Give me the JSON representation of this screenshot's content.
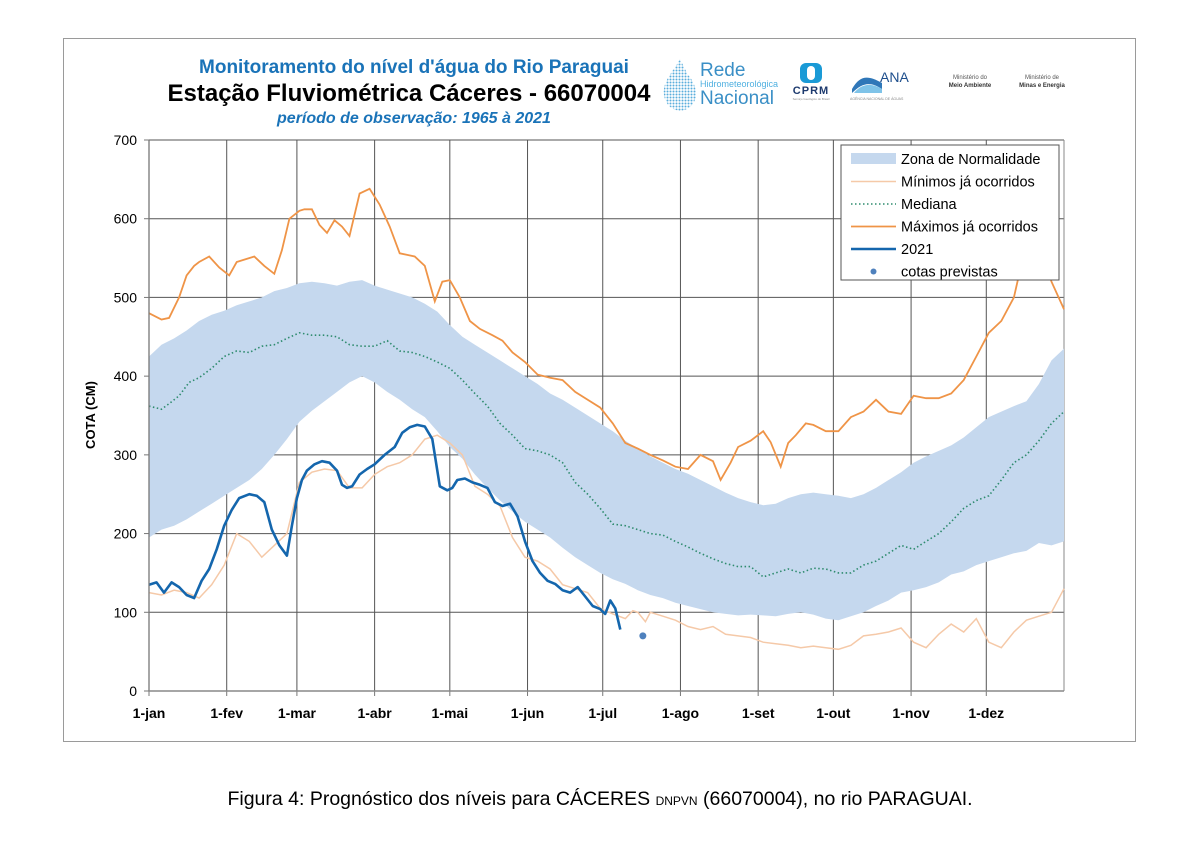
{
  "header": {
    "title_line1": "Monitoramento do nível d'água do Rio Paraguai",
    "title_line2": "Estação Fluviométrica Cáceres - 66070004",
    "title_line3": "período de observação: 1965 à 2021"
  },
  "logos": {
    "rede_line1": "Rede",
    "rede_line2": "Hidrometeorológica",
    "rede_line3": "Nacional",
    "cprm": "CPRM",
    "cprm_sub": "Serviço Geológico do Brasil",
    "ana": "ANA",
    "ana_sub": "AGÊNCIA NACIONAL DE ÁGUAS",
    "mma_line1": "Ministério do",
    "mma_line2": "Meio Ambiente",
    "mme_line1": "Ministério de",
    "mme_line2": "Minas e Energia"
  },
  "caption": {
    "prefix": "Figura 4: Prognóstico dos níveis para CÁCERES ",
    "small": "DNPVN",
    "suffix": " (66070004), no rio PARAGUAI."
  },
  "colors": {
    "band": "#c5d8ee",
    "min": "#f5c9a8",
    "median": "#2e8b6e",
    "max": "#ef9447",
    "y2021": "#1466ad",
    "forecast": "#4f81bd",
    "grid": "#555555"
  },
  "chart_data": {
    "type": "line",
    "title": "Monitoramento do nível d'água do Rio Paraguai",
    "xlabel": "",
    "ylabel": "COTA (CM)",
    "ylim": [
      0,
      700
    ],
    "yticks": [
      0,
      100,
      200,
      300,
      400,
      500,
      600,
      700
    ],
    "xlim_days": [
      0,
      365
    ],
    "xticks": [
      {
        "day": 0,
        "label": "1-jan"
      },
      {
        "day": 31,
        "label": "1-fev"
      },
      {
        "day": 59,
        "label": "1-mar"
      },
      {
        "day": 90,
        "label": "1-abr"
      },
      {
        "day": 120,
        "label": "1-mai"
      },
      {
        "day": 151,
        "label": "1-jun"
      },
      {
        "day": 181,
        "label": "1-jul"
      },
      {
        "day": 212,
        "label": "1-ago"
      },
      {
        "day": 243,
        "label": "1-set"
      },
      {
        "day": 273,
        "label": "1-out"
      },
      {
        "day": 304,
        "label": "1-nov"
      },
      {
        "day": 334,
        "label": "1-dez"
      }
    ],
    "grid": true,
    "legend_position": "top-right",
    "legend": [
      {
        "key": "band",
        "label": "Zona de Normalidade"
      },
      {
        "key": "min",
        "label": "Mínimos já ocorridos"
      },
      {
        "key": "median",
        "label": "Mediana"
      },
      {
        "key": "max",
        "label": "Máximos já ocorridos"
      },
      {
        "key": "y2021",
        "label": "2021"
      },
      {
        "key": "forecast",
        "label": "cotas previstas"
      }
    ],
    "band": {
      "name": "Zona de Normalidade",
      "x": [
        0,
        5,
        10,
        15,
        20,
        25,
        30,
        35,
        40,
        45,
        50,
        55,
        60,
        65,
        70,
        75,
        80,
        85,
        90,
        95,
        100,
        105,
        110,
        115,
        120,
        125,
        130,
        135,
        140,
        145,
        150,
        155,
        160,
        165,
        170,
        175,
        180,
        185,
        190,
        195,
        200,
        205,
        210,
        215,
        220,
        225,
        230,
        235,
        240,
        245,
        250,
        255,
        260,
        265,
        270,
        275,
        280,
        285,
        290,
        295,
        300,
        305,
        310,
        315,
        320,
        325,
        330,
        335,
        340,
        345,
        350,
        355,
        360,
        365
      ],
      "upper": [
        425,
        440,
        448,
        458,
        470,
        478,
        483,
        490,
        495,
        500,
        508,
        512,
        518,
        520,
        518,
        515,
        520,
        522,
        515,
        510,
        505,
        500,
        492,
        482,
        465,
        450,
        440,
        430,
        420,
        410,
        400,
        390,
        378,
        370,
        360,
        350,
        340,
        330,
        318,
        308,
        298,
        290,
        282,
        276,
        268,
        260,
        252,
        245,
        240,
        236,
        238,
        245,
        250,
        252,
        250,
        248,
        245,
        250,
        258,
        268,
        278,
        290,
        298,
        305,
        312,
        322,
        335,
        348,
        355,
        362,
        368,
        390,
        420,
        435
      ],
      "lower": [
        195,
        205,
        210,
        218,
        228,
        238,
        248,
        258,
        268,
        282,
        300,
        320,
        342,
        356,
        368,
        380,
        392,
        400,
        392,
        380,
        370,
        358,
        348,
        330,
        310,
        295,
        275,
        258,
        242,
        228,
        215,
        205,
        195,
        182,
        170,
        160,
        150,
        142,
        136,
        128,
        122,
        118,
        112,
        108,
        104,
        100,
        98,
        96,
        97,
        96,
        95,
        98,
        100,
        97,
        92,
        90,
        95,
        100,
        108,
        115,
        125,
        128,
        132,
        138,
        148,
        152,
        160,
        165,
        170,
        175,
        178,
        188,
        185,
        190
      ]
    },
    "series": [
      {
        "name": "Máximos já ocorridos",
        "key": "max",
        "x": [
          0,
          5,
          8,
          12,
          15,
          18,
          20,
          24,
          28,
          32,
          35,
          38,
          42,
          46,
          50,
          53,
          56,
          60,
          62,
          65,
          68,
          71,
          74,
          77,
          80,
          84,
          88,
          92,
          96,
          100,
          103,
          106,
          110,
          114,
          117,
          120,
          124,
          128,
          132,
          137,
          141,
          145,
          150,
          155,
          160,
          165,
          170,
          175,
          180,
          185,
          190,
          195,
          200,
          205,
          210,
          215,
          220,
          225,
          228,
          232,
          235,
          240,
          245,
          248,
          252,
          255,
          258,
          262,
          265,
          270,
          275,
          280,
          285,
          290,
          295,
          300,
          305,
          310,
          315,
          320,
          325,
          330,
          335,
          340,
          345,
          350,
          352,
          356,
          360,
          365
        ],
        "values": [
          480,
          472,
          474,
          500,
          528,
          540,
          545,
          552,
          538,
          528,
          545,
          548,
          552,
          540,
          530,
          560,
          600,
          610,
          612,
          612,
          592,
          582,
          598,
          590,
          578,
          632,
          638,
          618,
          590,
          556,
          554,
          552,
          540,
          495,
          520,
          522,
          500,
          470,
          460,
          452,
          445,
          430,
          418,
          402,
          398,
          395,
          380,
          370,
          360,
          340,
          315,
          308,
          300,
          293,
          285,
          282,
          300,
          292,
          268,
          290,
          310,
          318,
          330,
          316,
          285,
          315,
          325,
          340,
          338,
          330,
          330,
          348,
          355,
          370,
          355,
          352,
          375,
          372,
          372,
          378,
          395,
          425,
          455,
          470,
          500,
          570,
          600,
          560,
          520,
          485
        ]
      },
      {
        "name": "Mediana",
        "key": "median",
        "x": [
          0,
          5,
          8,
          12,
          16,
          20,
          25,
          30,
          35,
          40,
          45,
          50,
          55,
          60,
          65,
          70,
          75,
          80,
          85,
          90,
          95,
          100,
          105,
          110,
          115,
          120,
          125,
          130,
          135,
          140,
          145,
          150,
          155,
          160,
          165,
          170,
          175,
          180,
          185,
          190,
          195,
          200,
          205,
          210,
          215,
          220,
          225,
          230,
          235,
          240,
          245,
          250,
          255,
          260,
          265,
          270,
          275,
          280,
          285,
          290,
          295,
          300,
          305,
          310,
          315,
          320,
          325,
          330,
          335,
          340,
          345,
          350,
          355,
          360,
          365
        ],
        "values": [
          362,
          358,
          365,
          375,
          392,
          398,
          410,
          425,
          432,
          430,
          438,
          440,
          448,
          455,
          452,
          452,
          450,
          440,
          438,
          438,
          445,
          432,
          430,
          425,
          418,
          410,
          395,
          378,
          362,
          340,
          325,
          308,
          305,
          300,
          290,
          265,
          250,
          232,
          212,
          210,
          205,
          200,
          198,
          190,
          183,
          175,
          168,
          162,
          158,
          158,
          145,
          150,
          155,
          150,
          156,
          155,
          150,
          150,
          160,
          165,
          175,
          185,
          180,
          190,
          200,
          215,
          232,
          242,
          248,
          268,
          290,
          300,
          318,
          340,
          355
        ]
      },
      {
        "name": "Mínimos já ocorridos",
        "key": "min",
        "x": [
          0,
          5,
          10,
          15,
          20,
          25,
          30,
          35,
          40,
          45,
          50,
          55,
          60,
          65,
          70,
          75,
          80,
          85,
          90,
          95,
          100,
          105,
          110,
          115,
          120,
          125,
          130,
          135,
          140,
          145,
          150,
          155,
          160,
          165,
          170,
          175,
          180,
          185,
          190,
          193,
          195,
          198,
          200,
          205,
          210,
          215,
          220,
          225,
          230,
          235,
          240,
          245,
          250,
          255,
          260,
          265,
          270,
          275,
          280,
          285,
          290,
          295,
          300,
          305,
          310,
          315,
          320,
          325,
          330,
          335,
          340,
          345,
          350,
          355,
          360,
          365
        ],
        "values": [
          125,
          122,
          128,
          125,
          118,
          135,
          160,
          200,
          190,
          170,
          185,
          200,
          265,
          278,
          282,
          280,
          258,
          258,
          275,
          285,
          290,
          300,
          320,
          325,
          315,
          300,
          260,
          250,
          235,
          195,
          170,
          165,
          155,
          135,
          130,
          125,
          105,
          98,
          92,
          102,
          100,
          88,
          100,
          95,
          90,
          82,
          78,
          82,
          72,
          70,
          68,
          62,
          60,
          58,
          55,
          57,
          55,
          53,
          58,
          70,
          72,
          75,
          80,
          62,
          55,
          72,
          85,
          75,
          92,
          62,
          55,
          75,
          90,
          95,
          100,
          130
        ]
      },
      {
        "name": "2021",
        "key": "y2021",
        "x": [
          0,
          3,
          6,
          9,
          12,
          15,
          18,
          21,
          24,
          27,
          30,
          33,
          36,
          40,
          43,
          46,
          49,
          52,
          55,
          57,
          59,
          61,
          63,
          66,
          69,
          72,
          75,
          77,
          79,
          81,
          84,
          87,
          90,
          94,
          98,
          101,
          104,
          107,
          110,
          113,
          116,
          119,
          121,
          123,
          126,
          129,
          132,
          135,
          138,
          141,
          144,
          147,
          150,
          153,
          156,
          159,
          162,
          165,
          168,
          171,
          174,
          177,
          180,
          182,
          184,
          186,
          188
        ],
        "values": [
          135,
          138,
          125,
          138,
          132,
          122,
          118,
          140,
          155,
          180,
          210,
          230,
          245,
          250,
          248,
          240,
          205,
          185,
          172,
          210,
          245,
          268,
          280,
          288,
          292,
          290,
          280,
          262,
          258,
          260,
          275,
          282,
          288,
          300,
          310,
          328,
          335,
          338,
          336,
          320,
          260,
          255,
          258,
          268,
          270,
          265,
          262,
          258,
          240,
          235,
          238,
          222,
          190,
          165,
          150,
          140,
          136,
          128,
          125,
          132,
          120,
          108,
          104,
          98,
          115,
          105,
          78
        ]
      }
    ],
    "forecast_points": [
      {
        "day": 197,
        "value": 70
      }
    ]
  }
}
